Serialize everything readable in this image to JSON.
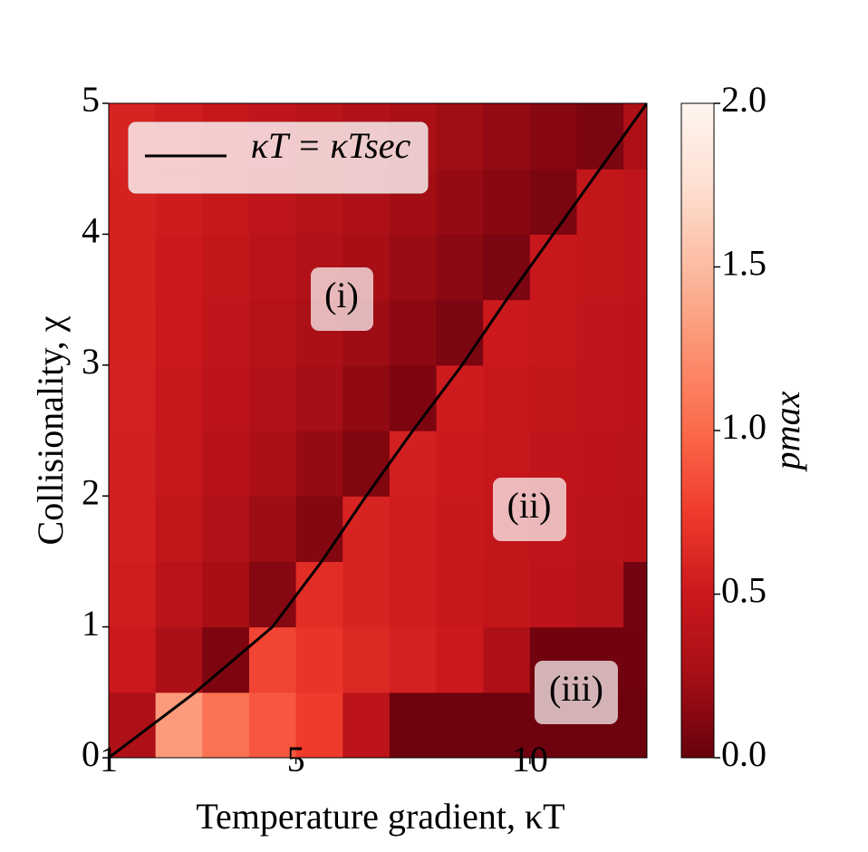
{
  "chart_data": {
    "type": "heatmap",
    "xlabel": "Temperature gradient, κT",
    "ylabel": "Collisionality, χ",
    "xlim": [
      1,
      12.5
    ],
    "ylim": [
      0,
      5
    ],
    "xticks": [
      1,
      5,
      10
    ],
    "yticks": [
      0,
      1,
      2,
      3,
      4,
      5
    ],
    "xbins": [
      1,
      2,
      3,
      4,
      5,
      6,
      7,
      8,
      9,
      10,
      11,
      12,
      12.5
    ],
    "ybins": [
      0,
      0.5,
      1,
      1.5,
      2,
      2.5,
      3,
      3.5,
      4,
      4.5,
      5
    ],
    "z": [
      [
        0.3,
        1.3,
        1.05,
        0.9,
        0.75,
        0.4,
        0.03,
        0.03,
        0.03,
        0.03,
        0.03,
        0.03
      ],
      [
        0.5,
        0.29,
        0.09,
        0.8,
        0.7,
        0.62,
        0.56,
        0.5,
        0.3,
        0.04,
        0.04,
        0.04
      ],
      [
        0.53,
        0.39,
        0.26,
        0.12,
        0.65,
        0.58,
        0.53,
        0.48,
        0.44,
        0.4,
        0.36,
        0.05
      ],
      [
        0.55,
        0.44,
        0.33,
        0.22,
        0.11,
        0.58,
        0.53,
        0.49,
        0.45,
        0.42,
        0.39,
        0.37
      ],
      [
        0.55,
        0.46,
        0.37,
        0.28,
        0.19,
        0.1,
        0.55,
        0.5,
        0.46,
        0.43,
        0.4,
        0.38
      ],
      [
        0.56,
        0.48,
        0.4,
        0.33,
        0.25,
        0.17,
        0.09,
        0.52,
        0.48,
        0.45,
        0.42,
        0.4
      ],
      [
        0.57,
        0.5,
        0.43,
        0.36,
        0.29,
        0.22,
        0.15,
        0.08,
        0.5,
        0.46,
        0.43,
        0.4
      ],
      [
        0.57,
        0.51,
        0.45,
        0.39,
        0.33,
        0.26,
        0.2,
        0.14,
        0.08,
        0.48,
        0.44,
        0.42
      ],
      [
        0.57,
        0.52,
        0.46,
        0.41,
        0.35,
        0.3,
        0.24,
        0.19,
        0.13,
        0.08,
        0.45,
        0.42
      ],
      [
        0.58,
        0.53,
        0.48,
        0.43,
        0.38,
        0.33,
        0.28,
        0.23,
        0.18,
        0.13,
        0.08,
        0.3
      ]
    ],
    "colorbar": {
      "label": "pmax",
      "lim": [
        0,
        2
      ],
      "ticks": [
        {
          "value": 0,
          "label": "0.0"
        },
        {
          "value": 0.5,
          "label": "0.5"
        },
        {
          "value": 1,
          "label": "1.0"
        },
        {
          "value": 1.5,
          "label": "1.5"
        },
        {
          "value": 2,
          "label": "2.0"
        }
      ],
      "colormap": [
        "#67000d",
        "#a50f15",
        "#cb181d",
        "#ef3b2c",
        "#fb6a4a",
        "#fc9272",
        "#fcbba1",
        "#fee0d2",
        "#fff5f0"
      ]
    },
    "series": [
      {
        "name": "κT = κTsec",
        "color": "#000000",
        "x": [
          1,
          2.85,
          4.5,
          5.55,
          6.5,
          7.5,
          8.55,
          9.5,
          10.5,
          11.5,
          12.5
        ],
        "y": [
          0,
          0.5,
          1,
          1.5,
          2,
          2.5,
          3,
          3.5,
          4,
          4.5,
          5
        ]
      }
    ],
    "annotations": [
      "(i)",
      "(ii)",
      "(iii)"
    ]
  }
}
